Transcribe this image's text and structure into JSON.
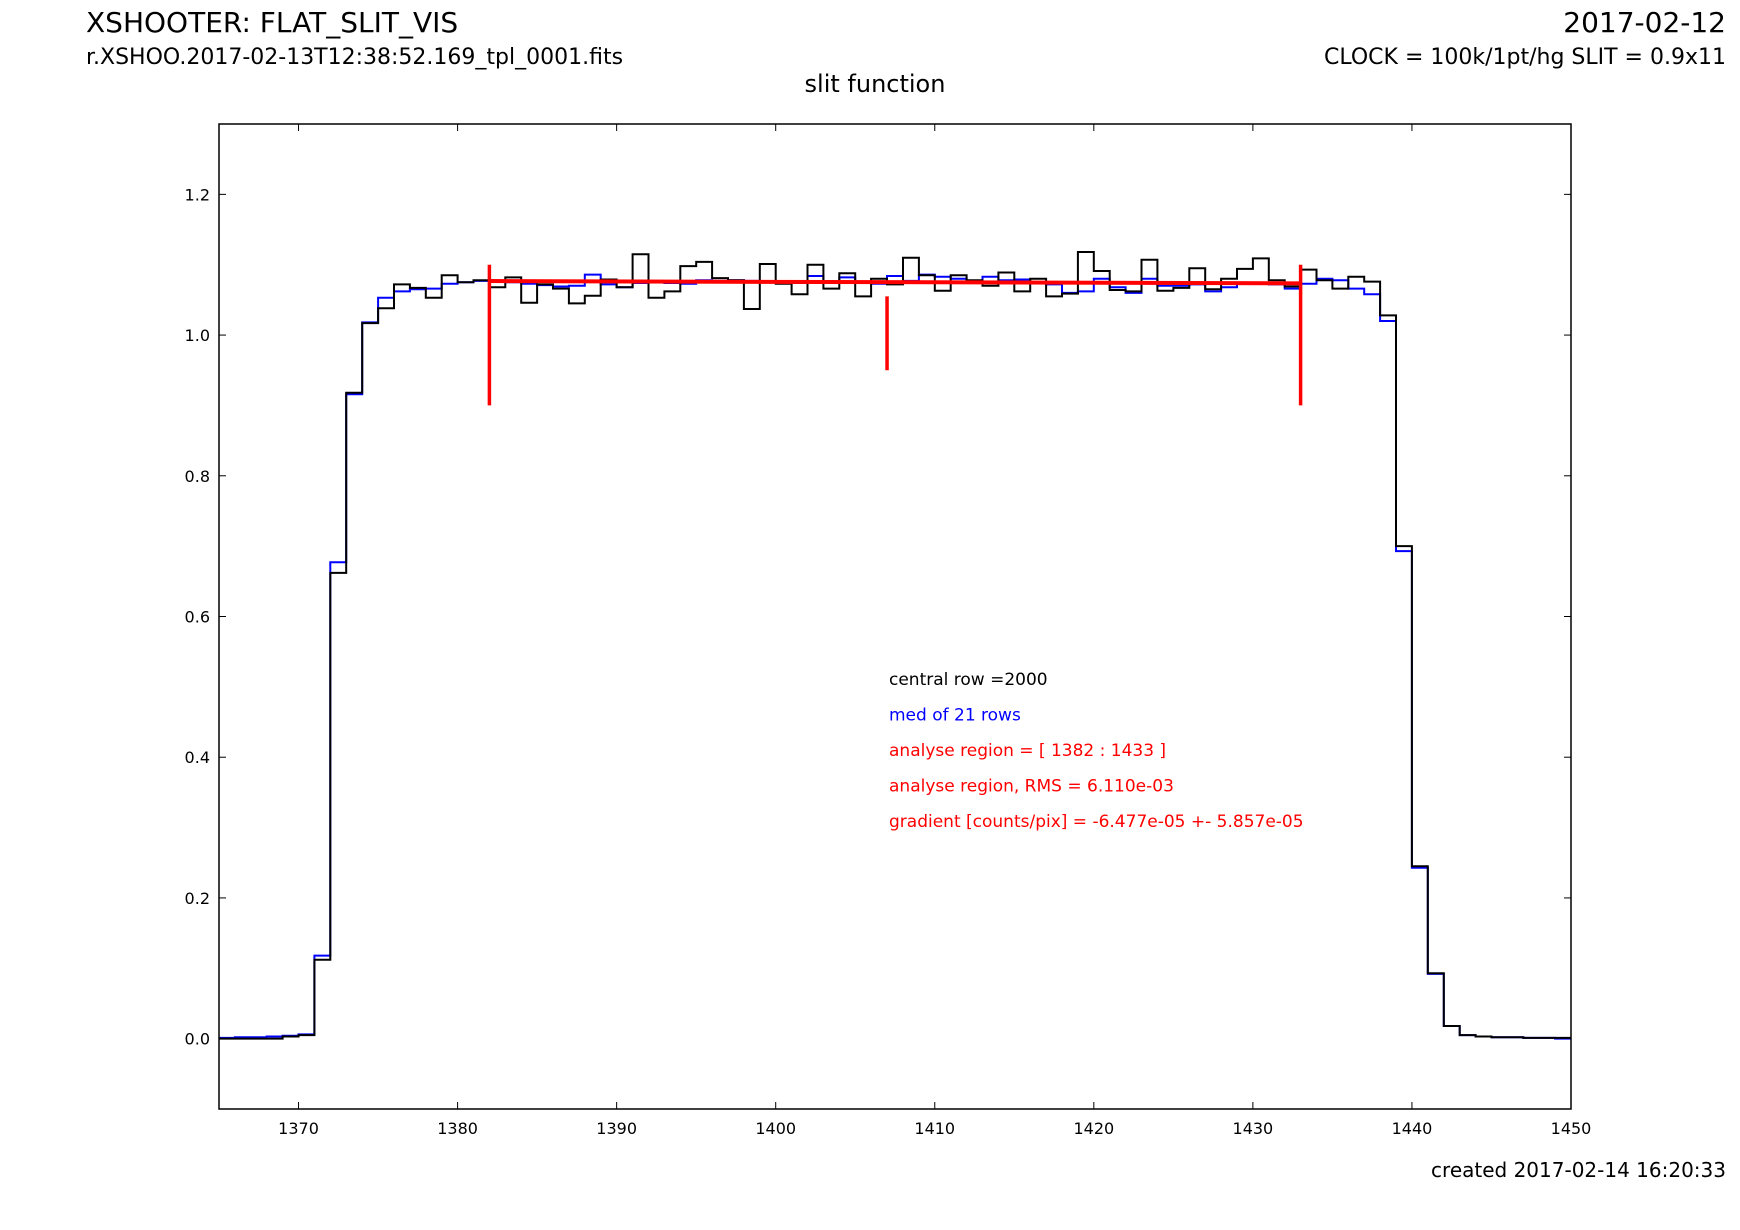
{
  "header": {
    "title": "XSHOOTER: FLAT_SLIT_VIS",
    "filename": "r.XSHOO.2017-02-13T12:38:52.169_tpl_0001.fits",
    "date": "2017-02-12",
    "clock": "CLOCK = 100k/1pt/hg SLIT = 0.9x11"
  },
  "footer": {
    "created": "created 2017-02-14 16:20:33"
  },
  "colors": {
    "central": "#000000",
    "median": "#0000ff",
    "analysis": "#ff0000"
  },
  "chart_data": {
    "type": "line",
    "title": "slit function",
    "xlabel": "",
    "ylabel": "",
    "xlim": [
      1365,
      1450
    ],
    "ylim": [
      -0.1,
      1.3
    ],
    "xticks": [
      1370,
      1380,
      1390,
      1400,
      1410,
      1420,
      1430,
      1440,
      1450
    ],
    "yticks": [
      0.0,
      0.2,
      0.4,
      0.6,
      0.8,
      1.0,
      1.2
    ],
    "grid": false,
    "step_x_start": 1365,
    "series": [
      {
        "name": "central row =2000",
        "color": "#000000",
        "values": [
          0.0,
          0.0,
          0.0,
          0.0,
          0.003,
          0.005,
          0.112,
          0.662,
          0.918,
          1.017,
          1.038,
          1.072,
          1.067,
          1.053,
          1.085,
          1.075,
          1.078,
          1.068,
          1.082,
          1.046,
          1.072,
          1.066,
          1.045,
          1.056,
          1.079,
          1.068,
          1.115,
          1.053,
          1.062,
          1.098,
          1.104,
          1.081,
          1.078,
          1.037,
          1.101,
          1.073,
          1.058,
          1.1,
          1.066,
          1.088,
          1.055,
          1.08,
          1.072,
          1.11,
          1.085,
          1.063,
          1.085,
          1.078,
          1.07,
          1.089,
          1.062,
          1.08,
          1.055,
          1.059,
          1.118,
          1.091,
          1.064,
          1.062,
          1.107,
          1.063,
          1.067,
          1.095,
          1.065,
          1.08,
          1.094,
          1.109,
          1.078,
          1.069,
          1.093,
          1.078,
          1.066,
          1.083,
          1.076,
          1.028,
          0.7,
          0.245,
          0.093,
          0.018,
          0.005,
          0.003,
          0.002,
          0.002,
          0.001,
          0.001,
          0.001
        ]
      },
      {
        "name": "med of 21 rows",
        "color": "#0000ff",
        "values": [
          0.001,
          0.002,
          0.002,
          0.003,
          0.004,
          0.006,
          0.118,
          0.677,
          0.916,
          1.018,
          1.053,
          1.062,
          1.065,
          1.066,
          1.073,
          1.075,
          1.077,
          1.077,
          1.075,
          1.073,
          1.071,
          1.069,
          1.07,
          1.086,
          1.072,
          1.068,
          1.074,
          1.076,
          1.074,
          1.073,
          1.078,
          1.077,
          1.078,
          1.077,
          1.076,
          1.075,
          1.074,
          1.084,
          1.075,
          1.082,
          1.075,
          1.073,
          1.084,
          1.077,
          1.086,
          1.083,
          1.08,
          1.077,
          1.083,
          1.078,
          1.079,
          1.075,
          1.072,
          1.06,
          1.062,
          1.08,
          1.068,
          1.06,
          1.08,
          1.07,
          1.07,
          1.072,
          1.062,
          1.068,
          1.074,
          1.074,
          1.072,
          1.066,
          1.073,
          1.08,
          1.078,
          1.066,
          1.058,
          1.02,
          0.693,
          0.243,
          0.092,
          0.018,
          0.005,
          0.003,
          0.002,
          0.002,
          0.001,
          0.001,
          0.0
        ]
      }
    ],
    "fit_line": {
      "x": [
        1382,
        1433
      ],
      "y": [
        1.0768,
        1.0735
      ],
      "color": "#ff0000"
    },
    "region_markers": [
      {
        "x": 1382,
        "y": [
          0.9,
          1.1
        ]
      },
      {
        "x": 1407,
        "y": [
          0.95,
          1.055
        ]
      },
      {
        "x": 1433,
        "y": [
          0.9,
          1.1
        ]
      }
    ],
    "annotations": [
      {
        "text": "central row =2000",
        "color": "#000000"
      },
      {
        "text": "med of 21 rows",
        "color": "#0000ff"
      },
      {
        "text": "analyse region = [ 1382 : 1433 ]",
        "color": "#ff0000"
      },
      {
        "text": "analyse region, RMS = 6.110e-03",
        "color": "#ff0000"
      },
      {
        "text": "gradient [counts/pix] = -6.477e-05 +- 5.857e-05",
        "color": "#ff0000"
      }
    ]
  }
}
